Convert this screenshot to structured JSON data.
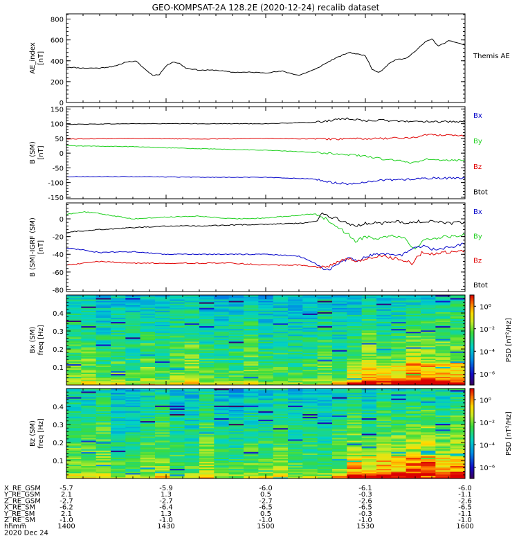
{
  "title": "GEO-KOMPSAT-2A 128.2E (2020-12-24) recalib dataset",
  "x_axis": {
    "tick_labels": [
      "1400",
      "1430",
      "1500",
      "1530",
      "1600"
    ],
    "range_minutes": [
      0,
      120
    ],
    "date_label": "2020 Dec 24",
    "ephemeris": [
      {
        "name": "X_RE_GSM",
        "values": [
          "-5.7",
          "-5.9",
          "-6.0",
          "-6.1",
          "-6.0"
        ]
      },
      {
        "name": "Y_RE_GSM",
        "values": [
          "2.1",
          "1.3",
          "0.5",
          "-0.3",
          "-1.1"
        ]
      },
      {
        "name": "Z_RE_GSM",
        "values": [
          "-2.7",
          "-2.7",
          "-2.7",
          "-2.6",
          "-2.6"
        ]
      },
      {
        "name": "X_RE_SM",
        "values": [
          "-6.2",
          "-6.4",
          "-6.5",
          "-6.5",
          "-6.5"
        ]
      },
      {
        "name": "Y_RE_SM",
        "values": [
          "2.1",
          "1.3",
          "0.5",
          "-0.3",
          "-1.1"
        ]
      },
      {
        "name": "Z_RE_SM",
        "values": [
          "-1.0",
          "-1.0",
          "-1.0",
          "-1.0",
          "-1.0"
        ]
      },
      {
        "name": "hhmm",
        "values": [
          "1400",
          "1430",
          "1500",
          "1530",
          "1600"
        ]
      }
    ]
  },
  "colors": {
    "black": "#000000",
    "red": "#e00000",
    "green": "#20d020",
    "blue": "#0000c8"
  },
  "chart_data": [
    {
      "type": "line",
      "ylabel": [
        "AE_index",
        "[nT]"
      ],
      "ylim": [
        0,
        850
      ],
      "yticks": [
        0,
        200,
        400,
        600,
        800
      ],
      "legend": [
        {
          "label": "Themis AE",
          "color": "#000000"
        }
      ],
      "series": [
        {
          "name": "Themis AE",
          "color": "#000000",
          "x": [
            0,
            5,
            10,
            15,
            18,
            21,
            24,
            26,
            28,
            30,
            32,
            34,
            36,
            38,
            40,
            45,
            50,
            55,
            60,
            65,
            70,
            75,
            80,
            85,
            90,
            92,
            94,
            95,
            97,
            99,
            102,
            105,
            108,
            110,
            112,
            115,
            117,
            120
          ],
          "y": [
            340,
            330,
            330,
            350,
            390,
            395,
            310,
            260,
            270,
            350,
            390,
            375,
            330,
            320,
            310,
            310,
            290,
            290,
            285,
            300,
            260,
            320,
            410,
            480,
            450,
            320,
            290,
            310,
            370,
            410,
            420,
            490,
            580,
            610,
            540,
            590,
            580,
            550
          ]
        }
      ]
    },
    {
      "type": "line",
      "ylabel": [
        "B (SM)",
        "[nT]"
      ],
      "ylim": [
        -155,
        158
      ],
      "yticks": [
        -150,
        -100,
        -50,
        0,
        50,
        100,
        150
      ],
      "legend": [
        {
          "label": "Bx",
          "color": "#0000c8"
        },
        {
          "label": "By",
          "color": "#20d020"
        },
        {
          "label": "Bz",
          "color": "#e00000"
        },
        {
          "label": "Btot",
          "color": "#000000"
        }
      ],
      "series": [
        {
          "name": "Btot",
          "color": "#000000",
          "x": [
            0,
            20,
            40,
            60,
            75,
            85,
            90,
            95,
            100,
            110,
            120
          ],
          "y": [
            98,
            100,
            100,
            100,
            105,
            118,
            110,
            112,
            108,
            108,
            105
          ]
        },
        {
          "name": "Bz",
          "color": "#e00000",
          "x": [
            0,
            20,
            40,
            60,
            75,
            85,
            95,
            104,
            108,
            112,
            120
          ],
          "y": [
            48,
            50,
            48,
            50,
            48,
            48,
            50,
            52,
            62,
            62,
            60
          ]
        },
        {
          "name": "By",
          "color": "#20d020",
          "x": [
            0,
            20,
            40,
            60,
            70,
            78,
            85,
            90,
            95,
            100,
            104,
            108,
            112,
            120
          ],
          "y": [
            25,
            22,
            15,
            10,
            5,
            0,
            -5,
            -10,
            -20,
            -25,
            -35,
            -20,
            -25,
            -25
          ]
        },
        {
          "name": "Bx",
          "color": "#0000c8",
          "x": [
            0,
            20,
            40,
            60,
            75,
            80,
            85,
            90,
            95,
            100,
            105,
            110,
            120
          ],
          "y": [
            -80,
            -80,
            -82,
            -82,
            -88,
            -100,
            -105,
            -98,
            -92,
            -90,
            -88,
            -85,
            -85
          ]
        }
      ]
    },
    {
      "type": "line",
      "ylabel": [
        "B (SM)-IGRF (SM)",
        "[nT]"
      ],
      "ylim": [
        -82,
        18
      ],
      "yticks": [
        -80,
        -60,
        -40,
        -20,
        0
      ],
      "legend": [
        {
          "label": "Bx",
          "color": "#0000c8"
        },
        {
          "label": "By",
          "color": "#20d020"
        },
        {
          "label": "Bz",
          "color": "#e00000"
        },
        {
          "label": "Btot",
          "color": "#000000"
        }
      ],
      "series": [
        {
          "name": "By",
          "color": "#20d020",
          "x": [
            0,
            5,
            10,
            15,
            20,
            30,
            40,
            50,
            60,
            70,
            75,
            78,
            80,
            82,
            85,
            87,
            90,
            94,
            98,
            102,
            105,
            107,
            110,
            115,
            120
          ],
          "y": [
            5,
            8,
            6,
            3,
            0,
            2,
            3,
            0,
            1,
            4,
            6,
            0,
            -5,
            -10,
            -18,
            -25,
            -20,
            -22,
            -18,
            -22,
            -35,
            -25,
            -22,
            -20,
            -18
          ]
        },
        {
          "name": "Btot",
          "color": "#000000",
          "x": [
            0,
            10,
            20,
            30,
            40,
            50,
            60,
            70,
            75,
            77,
            80,
            85,
            87,
            90,
            95,
            100,
            103,
            106,
            110,
            115,
            120
          ],
          "y": [
            -15,
            -12,
            -10,
            -8,
            -8,
            -7,
            -6,
            -5,
            -3,
            5,
            2,
            -5,
            -8,
            -5,
            -5,
            -3,
            -5,
            -3,
            -3,
            -5,
            -4
          ]
        },
        {
          "name": "Bx",
          "color": "#0000c8",
          "x": [
            0,
            5,
            10,
            20,
            30,
            40,
            50,
            60,
            70,
            75,
            78,
            80,
            82,
            85,
            88,
            90,
            95,
            100,
            104,
            107,
            110,
            115,
            120
          ],
          "y": [
            -33,
            -35,
            -38,
            -37,
            -40,
            -40,
            -40,
            -40,
            -42,
            -50,
            -58,
            -55,
            -50,
            -45,
            -48,
            -42,
            -40,
            -42,
            -35,
            -30,
            -35,
            -32,
            -28
          ]
        },
        {
          "name": "Bz",
          "color": "#e00000",
          "x": [
            0,
            5,
            10,
            20,
            30,
            40,
            50,
            60,
            70,
            75,
            78,
            80,
            82,
            85,
            88,
            90,
            95,
            100,
            104,
            107,
            110,
            115,
            120
          ],
          "y": [
            -52,
            -50,
            -48,
            -50,
            -50,
            -50,
            -50,
            -52,
            -52,
            -54,
            -55,
            -52,
            -48,
            -45,
            -48,
            -45,
            -42,
            -45,
            -50,
            -38,
            -40,
            -37,
            -36
          ]
        }
      ]
    },
    {
      "type": "heatmap",
      "ylabel": [
        "Bx (SM)",
        "freq [Hz]"
      ],
      "ylim": [
        0,
        0.5
      ],
      "yticks": [
        0.1,
        0.2,
        0.3,
        0.4
      ],
      "colorbar": {
        "label": "PSD [nT²/Hz]",
        "tick_labels": [
          "10⁰",
          "10⁻²",
          "10⁻⁴",
          "10⁻⁶"
        ],
        "range_log10": [
          -7,
          1
        ]
      }
    },
    {
      "type": "heatmap",
      "ylabel": [
        "Bz (SM)",
        "freq [Hz]"
      ],
      "ylim": [
        0,
        0.5
      ],
      "yticks": [
        0.1,
        0.2,
        0.3,
        0.4
      ],
      "colorbar": {
        "label": "PSD [nT²/Hz]",
        "tick_labels": [
          "10⁰",
          "10⁻²",
          "10⁻⁴",
          "10⁻⁶"
        ],
        "range_log10": [
          -7,
          1
        ]
      }
    }
  ]
}
